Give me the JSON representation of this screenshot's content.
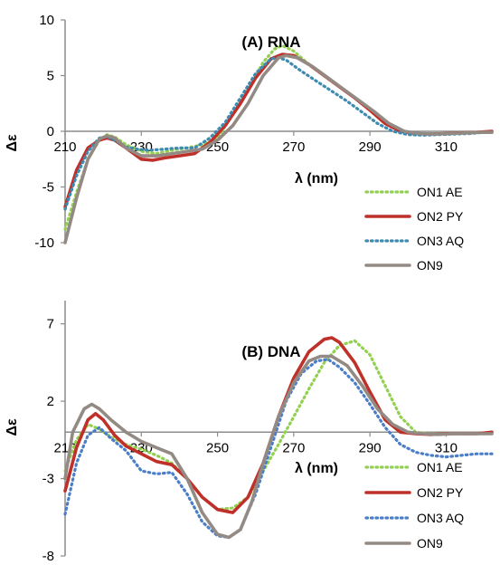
{
  "chart_data": [
    {
      "type": "line",
      "title": "(A) RNA",
      "xlabel": "λ (nm)",
      "ylabel": "Δε",
      "xlim": [
        210,
        322
      ],
      "ylim": [
        -10,
        10
      ],
      "x_ticks": [
        "210",
        "230",
        "250",
        "270",
        "290",
        "310"
      ],
      "y_ticks": [
        "10",
        "5",
        "0",
        "-5",
        "-10"
      ],
      "grid": false,
      "legend_position": "bottom-right",
      "series": [
        {
          "name": "ON1 AE",
          "color": "#92d050",
          "style": "dotted",
          "x": [
            210,
            213,
            216,
            219,
            221,
            223,
            226,
            230,
            234,
            238,
            242,
            246,
            250,
            254,
            258,
            262,
            265,
            267,
            270,
            274,
            278,
            282,
            286,
            290,
            294,
            298,
            302,
            306,
            310,
            314,
            318,
            322
          ],
          "y": [
            -8.8,
            -5.5,
            -2.5,
            -0.8,
            -0.3,
            -0.5,
            -1.2,
            -1.8,
            -2.0,
            -1.7,
            -1.5,
            -1.2,
            -0.6,
            1.5,
            3.7,
            6.2,
            7.4,
            7.7,
            7.2,
            6.0,
            5.0,
            4.0,
            3.0,
            1.9,
            0.8,
            0.0,
            -0.2,
            -0.2,
            -0.2,
            -0.15,
            -0.1,
            -0.1
          ]
        },
        {
          "name": "ON2 PY",
          "color": "#c0302a",
          "style": "solid",
          "x": [
            210,
            213,
            216,
            219,
            221,
            223,
            226,
            230,
            233,
            236,
            240,
            244,
            248,
            252,
            256,
            260,
            264,
            267,
            270,
            274,
            278,
            282,
            286,
            290,
            294,
            298,
            302,
            306,
            310,
            314,
            318,
            322
          ],
          "y": [
            -6.8,
            -3.5,
            -1.5,
            -0.8,
            -0.6,
            -0.8,
            -1.5,
            -2.5,
            -2.6,
            -2.4,
            -2.2,
            -2.0,
            -1.0,
            0.5,
            2.5,
            4.8,
            6.5,
            6.9,
            6.8,
            6.0,
            5.0,
            4.0,
            3.0,
            1.9,
            0.7,
            0.0,
            -0.2,
            -0.25,
            -0.2,
            -0.15,
            -0.1,
            0.0
          ]
        },
        {
          "name": "ON3 AQ",
          "color": "#3d8bb0",
          "style": "dotted",
          "x": [
            210,
            213,
            216,
            219,
            221,
            223,
            226,
            229,
            232,
            236,
            240,
            244,
            248,
            252,
            256,
            260,
            264,
            266,
            268,
            272,
            276,
            280,
            284,
            288,
            292,
            296,
            300,
            304,
            308,
            312,
            316,
            320,
            322
          ],
          "y": [
            -7.0,
            -4.0,
            -1.8,
            -0.6,
            -0.5,
            -0.8,
            -1.4,
            -1.6,
            -1.7,
            -1.6,
            -1.5,
            -1.5,
            -0.6,
            0.8,
            3.0,
            5.2,
            6.5,
            6.6,
            6.4,
            5.4,
            4.5,
            3.6,
            2.7,
            1.7,
            0.7,
            0.0,
            -0.3,
            -0.35,
            -0.3,
            -0.25,
            -0.2,
            -0.1,
            -0.1
          ]
        },
        {
          "name": "ON9",
          "color": "#948a84",
          "style": "solid",
          "x": [
            210,
            213,
            216,
            219,
            221,
            223,
            226,
            230,
            234,
            238,
            242,
            246,
            250,
            254,
            258,
            262,
            266,
            268,
            271,
            275,
            279,
            283,
            287,
            291,
            295,
            299,
            303,
            307,
            311,
            315,
            319,
            322
          ],
          "y": [
            -10.0,
            -6.0,
            -2.5,
            -0.7,
            -0.4,
            -0.6,
            -1.5,
            -2.2,
            -2.2,
            -2.0,
            -1.8,
            -1.6,
            -0.8,
            0.5,
            2.5,
            5.0,
            6.6,
            6.8,
            6.6,
            5.8,
            4.8,
            3.8,
            2.8,
            1.8,
            0.7,
            0.0,
            -0.2,
            -0.25,
            -0.2,
            -0.15,
            -0.1,
            -0.1
          ]
        }
      ]
    },
    {
      "type": "line",
      "title": "(B) DNA",
      "xlabel": "λ (nm)",
      "ylabel": "Δε",
      "xlim": [
        210,
        322
      ],
      "ylim": [
        -8,
        8.5
      ],
      "x_ticks": [
        "210",
        "230",
        "250",
        "270",
        "290",
        "310"
      ],
      "y_ticks": [
        "7",
        "2",
        "-3",
        "-8"
      ],
      "grid": false,
      "legend_position": "bottom-right",
      "series": [
        {
          "name": "ON1 AE",
          "color": "#92d050",
          "style": "dotted",
          "x": [
            210,
            213,
            216,
            219,
            222,
            226,
            230,
            234,
            238,
            242,
            246,
            250,
            254,
            258,
            262,
            266,
            270,
            274,
            278,
            282,
            286,
            290,
            294,
            298,
            302,
            306,
            310,
            314,
            318,
            322
          ],
          "y": [
            -2.5,
            -0.5,
            0.5,
            0.2,
            -0.3,
            -0.8,
            -1.1,
            -1.5,
            -2.0,
            -3.0,
            -4.2,
            -5.0,
            -4.9,
            -4.2,
            -2.5,
            -0.8,
            1.0,
            2.8,
            4.5,
            5.6,
            5.9,
            5.0,
            3.0,
            1.0,
            0.0,
            -0.1,
            -0.1,
            -0.1,
            -0.1,
            -0.1
          ]
        },
        {
          "name": "ON2 PY",
          "color": "#c0302a",
          "style": "solid",
          "x": [
            210,
            213,
            216,
            218,
            220,
            223,
            226,
            230,
            234,
            238,
            242,
            246,
            250,
            254,
            258,
            262,
            266,
            270,
            274,
            278,
            280,
            282,
            286,
            290,
            294,
            298,
            302,
            306,
            310,
            314,
            318,
            322
          ],
          "y": [
            -3.8,
            -1.0,
            0.8,
            1.2,
            0.8,
            -0.2,
            -0.9,
            -1.4,
            -1.9,
            -2.1,
            -3.0,
            -4.2,
            -5.0,
            -5.2,
            -4.2,
            -2.0,
            1.0,
            3.5,
            5.2,
            6.0,
            6.1,
            5.8,
            4.5,
            2.6,
            0.8,
            0.0,
            -0.1,
            -0.15,
            -0.1,
            -0.1,
            -0.1,
            0.0
          ]
        },
        {
          "name": "ON3 AQ",
          "color": "#4a7ec8",
          "style": "dotted",
          "x": [
            210,
            213,
            216,
            219,
            222,
            226,
            230,
            234,
            238,
            242,
            246,
            250,
            253,
            256,
            260,
            264,
            268,
            272,
            276,
            279,
            282,
            286,
            290,
            294,
            298,
            302,
            306,
            310,
            314,
            318,
            322
          ],
          "y": [
            -5.3,
            -2.0,
            -0.2,
            0.3,
            -0.4,
            -1.2,
            -2.5,
            -2.7,
            -2.6,
            -4.0,
            -5.8,
            -6.7,
            -6.8,
            -6.3,
            -4.0,
            -1.0,
            2.0,
            3.8,
            4.6,
            4.7,
            4.2,
            3.2,
            1.8,
            0.3,
            -0.8,
            -1.3,
            -1.5,
            -1.6,
            -1.5,
            -1.4,
            -1.4
          ]
        },
        {
          "name": "ON9",
          "color": "#948a84",
          "style": "solid",
          "x": [
            210,
            212,
            215,
            217,
            219,
            222,
            226,
            230,
            234,
            238,
            242,
            246,
            250,
            253,
            256,
            259,
            262,
            266,
            270,
            274,
            277,
            280,
            284,
            288,
            292,
            296,
            300,
            304,
            308,
            312,
            316,
            320,
            322
          ],
          "y": [
            -3.0,
            0.0,
            1.5,
            1.8,
            1.5,
            0.8,
            0.0,
            -0.6,
            -1.0,
            -1.4,
            -3.0,
            -5.2,
            -6.6,
            -6.8,
            -6.3,
            -4.5,
            -2.0,
            1.0,
            3.2,
            4.6,
            4.9,
            4.9,
            4.3,
            3.0,
            1.5,
            0.5,
            0.0,
            -0.1,
            -0.15,
            -0.1,
            -0.1,
            -0.1,
            -0.1
          ]
        }
      ]
    }
  ]
}
